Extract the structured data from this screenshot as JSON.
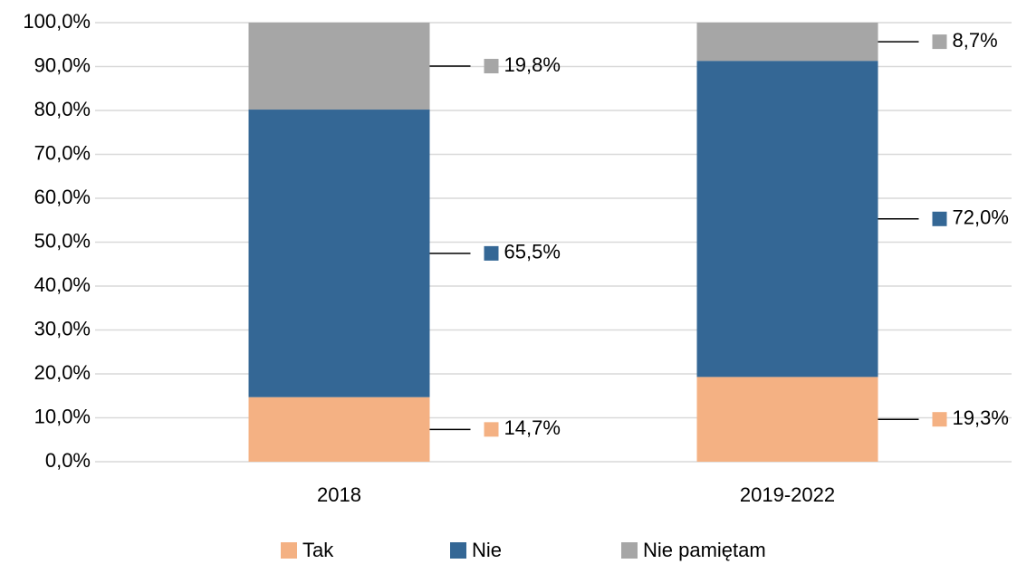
{
  "chart_data": {
    "type": "bar",
    "stacked": true,
    "categories": [
      "2018",
      "2019-2022"
    ],
    "series": [
      {
        "name": "Tak",
        "color": "#f4b183",
        "values": [
          14.7,
          19.3
        ],
        "value_labels": [
          "14,7%",
          "19,3%"
        ]
      },
      {
        "name": "Nie",
        "color": "#346795",
        "values": [
          65.5,
          72.0
        ],
        "value_labels": [
          "65,5%",
          "72,0%"
        ]
      },
      {
        "name": "Nie pamiętam",
        "color": "#a6a6a6",
        "values": [
          19.8,
          8.7
        ],
        "value_labels": [
          "19,8%",
          "8,7%"
        ]
      }
    ],
    "ylim": [
      0,
      100
    ],
    "yticks": [
      {
        "value": 0,
        "label": "0,0%"
      },
      {
        "value": 10,
        "label": "10,0%"
      },
      {
        "value": 20,
        "label": "20,0%"
      },
      {
        "value": 30,
        "label": "30,0%"
      },
      {
        "value": 40,
        "label": "40,0%"
      },
      {
        "value": 50,
        "label": "50,0%"
      },
      {
        "value": 60,
        "label": "60,0%"
      },
      {
        "value": 70,
        "label": "70,0%"
      },
      {
        "value": 80,
        "label": "80,0%"
      },
      {
        "value": 90,
        "label": "90,0%"
      },
      {
        "value": 100,
        "label": "100,0%"
      }
    ],
    "grid": true,
    "legend": "bottom"
  }
}
